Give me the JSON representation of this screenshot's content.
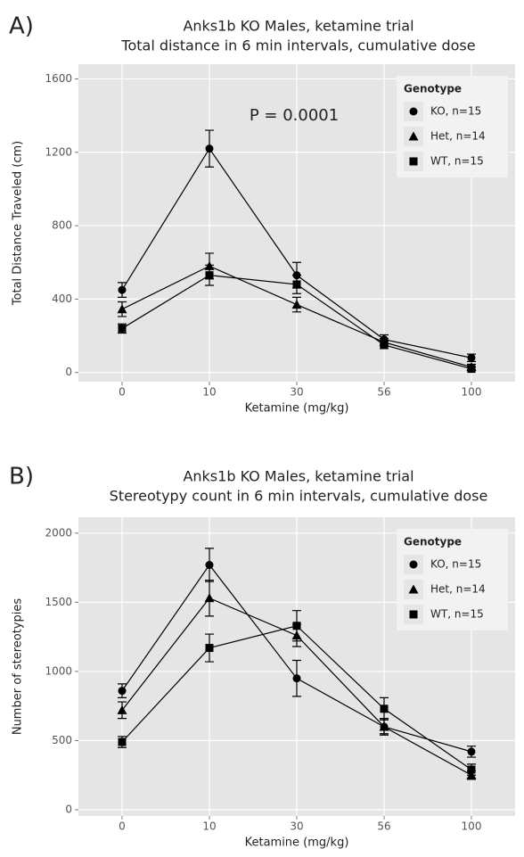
{
  "chart_data": [
    {
      "type": "line",
      "panel_label": "A)",
      "title": "Anks1b KO Males, ketamine trial",
      "subtitle": "Total distance in 6 min intervals, cumulative dose",
      "x_label": "Ketamine (mg/kg)",
      "y_label": "Total Distance Traveled (cm)",
      "annotation": "P = 0.0001",
      "categories": [
        "0",
        "10",
        "30",
        "56",
        "100"
      ],
      "ylim": [
        -50,
        1680
      ],
      "yticks": [
        0,
        400,
        800,
        1200,
        1600
      ],
      "grid": true,
      "legend_title": "Genotype",
      "legend_position": "top-right",
      "series": [
        {
          "name": "KO, n=15",
          "color": "#000000",
          "marker": "circle",
          "values": [
            450,
            1220,
            530,
            180,
            80
          ],
          "errors": [
            40,
            100,
            70,
            25,
            20
          ]
        },
        {
          "name": "Het, n=14",
          "color": "#000000",
          "marker": "triangle",
          "values": [
            345,
            580,
            370,
            165,
            30
          ],
          "errors": [
            40,
            70,
            40,
            20,
            15
          ]
        },
        {
          "name": "WT, n=15",
          "color": "#000000",
          "marker": "square",
          "values": [
            240,
            530,
            480,
            150,
            20
          ],
          "errors": [
            25,
            55,
            50,
            20,
            10
          ]
        }
      ]
    },
    {
      "type": "line",
      "panel_label": "B)",
      "title": "Anks1b KO Males, ketamine trial",
      "subtitle": "Stereotypy count in 6 min intervals, cumulative dose",
      "x_label": "Ketamine (mg/kg)",
      "y_label": "Number of stereotypies",
      "categories": [
        "0",
        "10",
        "30",
        "56",
        "100"
      ],
      "ylim": [
        -45,
        2115
      ],
      "yticks": [
        0,
        500,
        1000,
        1500,
        2000
      ],
      "grid": true,
      "legend_title": "Genotype",
      "legend_position": "top-right",
      "series": [
        {
          "name": "KO, n=15",
          "color": "#000000",
          "marker": "circle",
          "values": [
            860,
            1770,
            950,
            600,
            420
          ],
          "errors": [
            50,
            120,
            130,
            60,
            40
          ]
        },
        {
          "name": "Het, n=14",
          "color": "#000000",
          "marker": "triangle",
          "values": [
            720,
            1530,
            1260,
            600,
            250
          ],
          "errors": [
            60,
            130,
            80,
            50,
            30
          ]
        },
        {
          "name": "WT, n=15",
          "color": "#000000",
          "marker": "square",
          "values": [
            490,
            1170,
            1330,
            730,
            290
          ],
          "errors": [
            40,
            100,
            110,
            80,
            40
          ]
        }
      ]
    }
  ]
}
